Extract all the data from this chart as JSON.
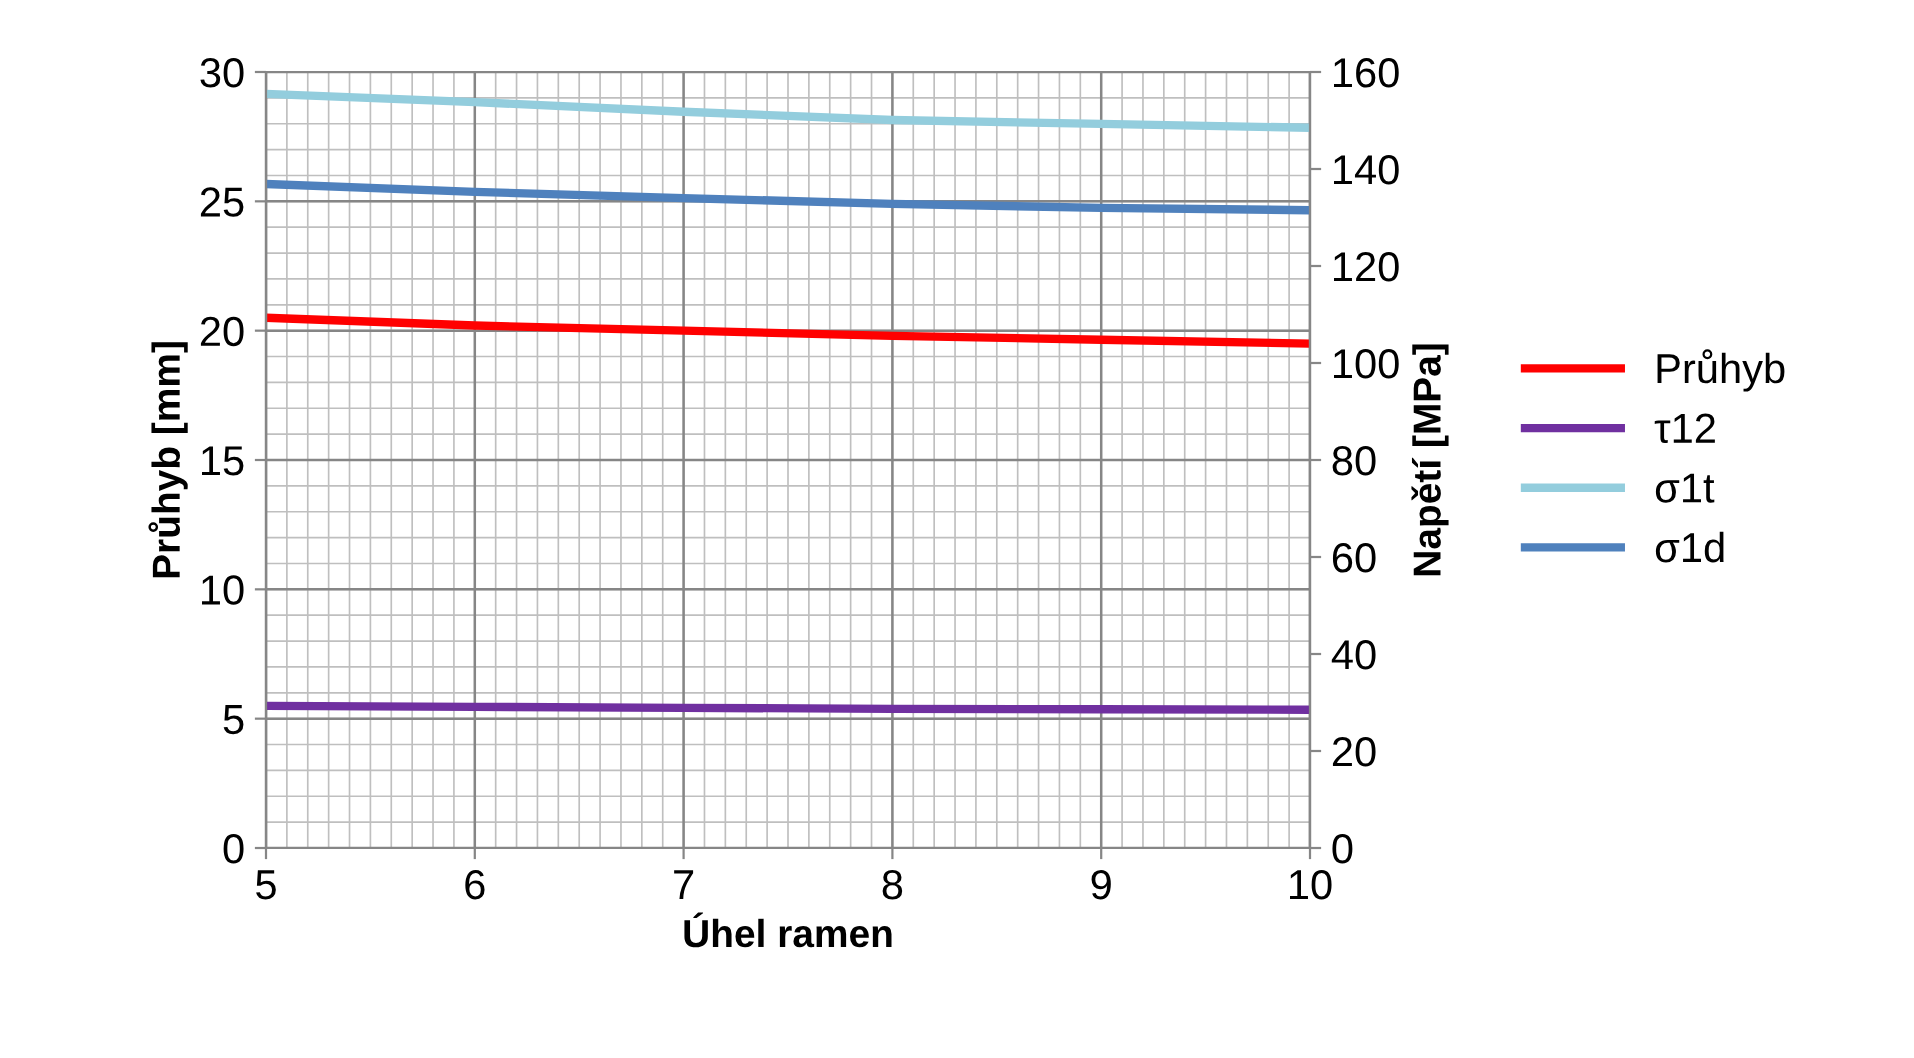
{
  "chart_data": {
    "type": "line",
    "xlabel": "Úhel ramen",
    "ylabel": "Průhyb [mm]",
    "y2label": "Napětí [MPa]",
    "x": [
      5,
      6,
      7,
      8,
      9,
      10
    ],
    "series": [
      {
        "name": "Průhyb",
        "color": "#ff0000",
        "values": [
          20.5,
          20.2,
          20.0,
          19.8,
          19.65,
          19.5
        ]
      },
      {
        "name": "τ12",
        "color": "#7030a0",
        "axis": "y2",
        "values": [
          29.3,
          29.1,
          28.9,
          28.7,
          28.6,
          28.5
        ]
      },
      {
        "name": "σ1t",
        "color": "#93cddd",
        "axis": "y2",
        "values": [
          155.5,
          153.8,
          151.8,
          150.1,
          149.3,
          148.5
        ]
      },
      {
        "name": "σ1d",
        "color": "#4f81bd",
        "axis": "y2",
        "values": [
          136.9,
          135.3,
          134.0,
          132.8,
          132.0,
          131.5
        ]
      }
    ],
    "xlim": [
      5,
      10
    ],
    "xticks": [
      5,
      6,
      7,
      8,
      9,
      10
    ],
    "ylim": [
      0,
      30
    ],
    "yticks": [
      0,
      5,
      10,
      15,
      20,
      25,
      30
    ],
    "y2lim": [
      0,
      160
    ],
    "y2ticks": [
      0,
      20,
      40,
      60,
      80,
      100,
      120,
      140,
      160
    ],
    "grid": true,
    "legend": "right",
    "marker": "none",
    "line_style": "solid"
  }
}
